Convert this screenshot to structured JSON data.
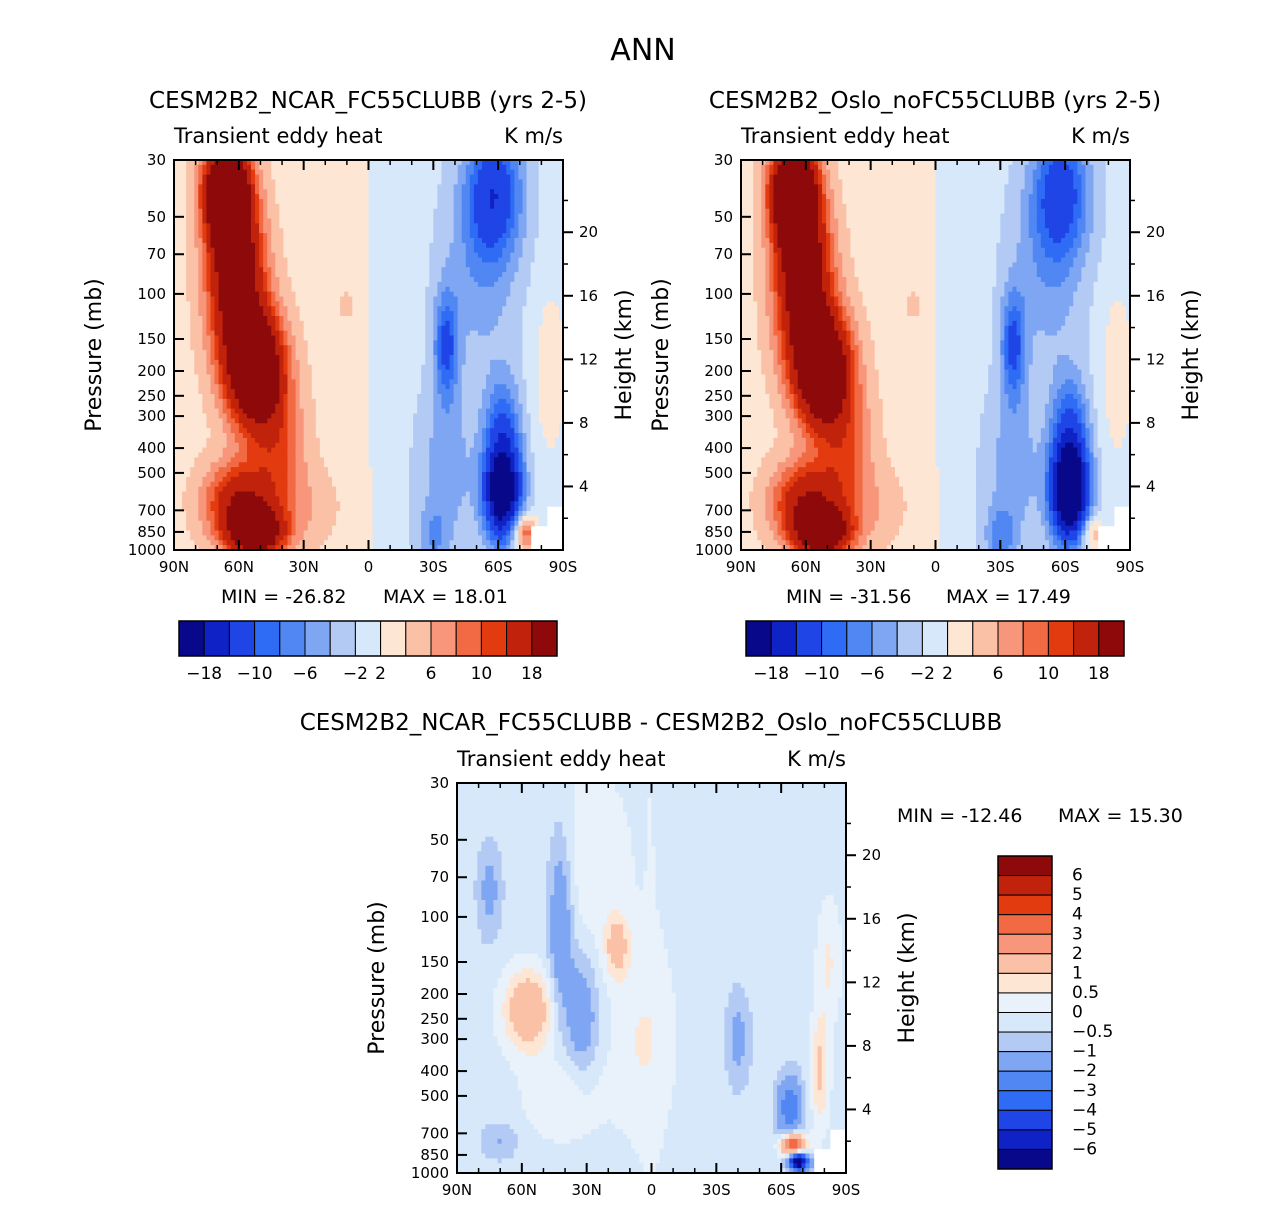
{
  "page": {
    "title": "ANN"
  },
  "colors": {
    "panel_scale": [
      "#08088a",
      "#0f22c6",
      "#1f45e6",
      "#2e6cf5",
      "#5087f2",
      "#7fa6f2",
      "#b3cbf4",
      "#d6e8fa",
      "#fde6d4",
      "#fbc1a6",
      "#f7967a",
      "#f26a43",
      "#e33b10",
      "#c1220b",
      "#8e0a0a"
    ],
    "diff_scale": [
      "#08088a",
      "#0f22c6",
      "#1f45e6",
      "#2e6cf5",
      "#5087f2",
      "#7fa6f2",
      "#b3cbf4",
      "#d6e8fa",
      "#e9f2fb",
      "#fde6d4",
      "#fbc1a6",
      "#f7967a",
      "#f26a43",
      "#e33b10",
      "#c1220b",
      "#8e0a0a"
    ]
  },
  "chart_data": [
    {
      "type": "heatmap",
      "title": "CESM2B2_NCAR_FC55CLUBB (yrs 2-5)",
      "field_label": "Transient eddy heat",
      "units": "K m/s",
      "xlabel": "",
      "ylabel": "Pressure (mb)",
      "y2label": "Height (km)",
      "x_ticks": [
        "90N",
        "60N",
        "30N",
        "0",
        "30S",
        "60S",
        "90S"
      ],
      "y_ticks": [
        "30",
        "50",
        "70",
        "100",
        "150",
        "200",
        "250",
        "300",
        "400",
        "500",
        "700",
        "850",
        "1000"
      ],
      "y_tick_values": [
        30,
        50,
        70,
        100,
        150,
        200,
        250,
        300,
        400,
        500,
        700,
        850,
        1000
      ],
      "y2_ticks": [
        "20",
        "16",
        "12",
        "8",
        "4"
      ],
      "y2_tick_values": [
        20,
        16,
        12,
        8,
        4
      ],
      "min_label": "MIN = -26.82",
      "max_label": "MAX =  18.01",
      "colorbar_labels": [
        "-18",
        "-10",
        "-6",
        "-2",
        "2",
        "6",
        "10",
        "18"
      ],
      "features": [
        {
          "lat": 66,
          "p": 40,
          "val": 24,
          "slat": 7,
          "slp": 0.3
        },
        {
          "lat": 62,
          "p": 70,
          "val": 14,
          "slat": 8,
          "slp": 0.5
        },
        {
          "lat": 52,
          "p": 200,
          "val": 22,
          "slat": 9,
          "slp": 0.35
        },
        {
          "lat": 60,
          "p": 110,
          "val": 8,
          "slat": 10,
          "slp": 0.5
        },
        {
          "lat": 60,
          "p": 650,
          "val": 12,
          "slat": 11,
          "slp": 0.25
        },
        {
          "lat": 52,
          "p": 860,
          "val": 18,
          "slat": 9,
          "slp": 0.15
        },
        {
          "lat": 42,
          "p": 400,
          "val": 6,
          "slat": 9,
          "slp": 0.4
        },
        {
          "lat": 10,
          "p": 110,
          "val": 2.4,
          "slat": 3,
          "slp": 0.1
        },
        {
          "lat": 30,
          "p": 680,
          "val": 2.2,
          "slat": 14,
          "slp": 0.25
        },
        {
          "lat": -62,
          "p": 600,
          "val": -22,
          "slat": 6,
          "slp": 0.3
        },
        {
          "lat": -62,
          "p": 340,
          "val": -8,
          "slat": 6,
          "slp": 0.35
        },
        {
          "lat": -58,
          "p": 40,
          "val": -11,
          "slat": 9,
          "slp": 0.4
        },
        {
          "lat": -52,
          "p": 80,
          "val": -4,
          "slat": 12,
          "slp": 0.6
        },
        {
          "lat": -36,
          "p": 160,
          "val": -9,
          "slat": 4,
          "slp": 0.35
        },
        {
          "lat": -36,
          "p": 480,
          "val": -4,
          "slat": 9,
          "slp": 0.5
        },
        {
          "lat": -30,
          "p": 900,
          "val": -4,
          "slat": 5,
          "slp": 0.2
        },
        {
          "lat": -84,
          "p": 200,
          "val": 2.5,
          "slat": 6,
          "slp": 0.6
        },
        {
          "lat": -72,
          "p": 860,
          "val": 10,
          "slat": 4,
          "slp": 0.12
        }
      ],
      "base": {
        "nh": 1.2,
        "sh": -1.3
      }
    },
    {
      "type": "heatmap",
      "title": "CESM2B2_Oslo_noFC55CLUBB (yrs 2-5)",
      "field_label": "Transient eddy heat",
      "units": "K m/s",
      "xlabel": "",
      "ylabel": "Pressure (mb)",
      "y2label": "Height (km)",
      "x_ticks": [
        "90N",
        "60N",
        "30N",
        "0",
        "30S",
        "60S",
        "90S"
      ],
      "y_ticks": [
        "30",
        "50",
        "70",
        "100",
        "150",
        "200",
        "250",
        "300",
        "400",
        "500",
        "700",
        "850",
        "1000"
      ],
      "y_tick_values": [
        30,
        50,
        70,
        100,
        150,
        200,
        250,
        300,
        400,
        500,
        700,
        850,
        1000
      ],
      "y2_ticks": [
        "20",
        "16",
        "12",
        "8",
        "4"
      ],
      "y2_tick_values": [
        20,
        16,
        12,
        8,
        4
      ],
      "min_label": "MIN = -31.56",
      "max_label": "MAX =  17.49",
      "colorbar_labels": [
        "-18",
        "-10",
        "-6",
        "-2",
        "2",
        "6",
        "10",
        "18"
      ],
      "features": [
        {
          "lat": 66,
          "p": 40,
          "val": 24,
          "slat": 7,
          "slp": 0.3
        },
        {
          "lat": 62,
          "p": 70,
          "val": 14,
          "slat": 8,
          "slp": 0.5
        },
        {
          "lat": 52,
          "p": 200,
          "val": 21,
          "slat": 9,
          "slp": 0.35
        },
        {
          "lat": 60,
          "p": 110,
          "val": 8,
          "slat": 10,
          "slp": 0.5
        },
        {
          "lat": 60,
          "p": 650,
          "val": 12,
          "slat": 11,
          "slp": 0.25
        },
        {
          "lat": 52,
          "p": 860,
          "val": 17,
          "slat": 9,
          "slp": 0.15
        },
        {
          "lat": 42,
          "p": 400,
          "val": 6,
          "slat": 9,
          "slp": 0.4
        },
        {
          "lat": 10,
          "p": 110,
          "val": 2.4,
          "slat": 3,
          "slp": 0.1
        },
        {
          "lat": 30,
          "p": 680,
          "val": 2.2,
          "slat": 14,
          "slp": 0.25
        },
        {
          "lat": -62,
          "p": 600,
          "val": -26,
          "slat": 6,
          "slp": 0.3
        },
        {
          "lat": -62,
          "p": 340,
          "val": -9,
          "slat": 6,
          "slp": 0.35
        },
        {
          "lat": -58,
          "p": 40,
          "val": -10,
          "slat": 9,
          "slp": 0.4
        },
        {
          "lat": -52,
          "p": 80,
          "val": -4,
          "slat": 12,
          "slp": 0.6
        },
        {
          "lat": -36,
          "p": 160,
          "val": -9,
          "slat": 4,
          "slp": 0.35
        },
        {
          "lat": -36,
          "p": 480,
          "val": -4,
          "slat": 9,
          "slp": 0.5
        },
        {
          "lat": -30,
          "p": 900,
          "val": -5,
          "slat": 5,
          "slp": 0.2
        },
        {
          "lat": -84,
          "p": 200,
          "val": 2.5,
          "slat": 6,
          "slp": 0.6
        },
        {
          "lat": -72,
          "p": 860,
          "val": 6,
          "slat": 4,
          "slp": 0.12
        }
      ],
      "base": {
        "nh": 1.2,
        "sh": -1.3
      }
    },
    {
      "type": "heatmap",
      "title": "CESM2B2_NCAR_FC55CLUBB - CESM2B2_Oslo_noFC55CLUBB",
      "field_label": "Transient eddy heat",
      "units": "K m/s",
      "xlabel": "",
      "ylabel": "Pressure (mb)",
      "y2label": "Height (km)",
      "x_ticks": [
        "90N",
        "60N",
        "30N",
        "0",
        "30S",
        "60S",
        "90S"
      ],
      "y_ticks": [
        "30",
        "50",
        "70",
        "100",
        "150",
        "200",
        "250",
        "300",
        "400",
        "500",
        "700",
        "850",
        "1000"
      ],
      "y_tick_values": [
        30,
        50,
        70,
        100,
        150,
        200,
        250,
        300,
        400,
        500,
        700,
        850,
        1000
      ],
      "y2_ticks": [
        "20",
        "16",
        "12",
        "8",
        "4"
      ],
      "y2_tick_values": [
        20,
        16,
        12,
        8,
        4
      ],
      "min_label": "MIN = -12.46",
      "max_label": "MAX =  15.30",
      "colorbar_labels": [
        "6",
        "5",
        "4",
        "3",
        "2",
        "1",
        "0.5",
        "0",
        "-0.5",
        "-1",
        "-2",
        "-3",
        "-4",
        "-5",
        "-6"
      ],
      "features": [
        {
          "lat": 57,
          "p": 230,
          "val": 2.2,
          "slat": 8,
          "slp": 0.25
        },
        {
          "lat": 16,
          "p": 130,
          "val": 1.6,
          "slat": 4,
          "slp": 0.2
        },
        {
          "lat": 28,
          "p": 60,
          "val": 0.7,
          "slat": 10,
          "slp": 0.6
        },
        {
          "lat": 40,
          "p": 500,
          "val": 0.7,
          "slat": 14,
          "slp": 0.3
        },
        {
          "lat": 5,
          "p": 300,
          "val": 0.6,
          "slat": 10,
          "slp": 0.5
        },
        {
          "lat": 42,
          "p": 110,
          "val": -1.6,
          "slat": 4,
          "slp": 0.6
        },
        {
          "lat": 32,
          "p": 250,
          "val": -1.4,
          "slat": 5,
          "slp": 0.4
        },
        {
          "lat": 75,
          "p": 80,
          "val": -1.0,
          "slat": 4,
          "slp": 0.3
        },
        {
          "lat": -40,
          "p": 300,
          "val": -1.0,
          "slat": 4,
          "slp": 0.3
        },
        {
          "lat": -64,
          "p": 560,
          "val": -2.5,
          "slat": 4,
          "slp": 0.2
        },
        {
          "lat": -68,
          "p": 900,
          "val": -8,
          "slat": 3,
          "slp": 0.06
        },
        {
          "lat": -66,
          "p": 780,
          "val": 5,
          "slat": 4,
          "slp": 0.07
        },
        {
          "lat": -78,
          "p": 400,
          "val": 1.4,
          "slat": 3,
          "slp": 0.35
        },
        {
          "lat": -82,
          "p": 150,
          "val": 0.8,
          "slat": 4,
          "slp": 0.4
        },
        {
          "lat": 70,
          "p": 750,
          "val": -0.8,
          "slat": 6,
          "slp": 0.12
        }
      ],
      "base": {
        "nh": -0.25,
        "sh": -0.25
      }
    }
  ]
}
